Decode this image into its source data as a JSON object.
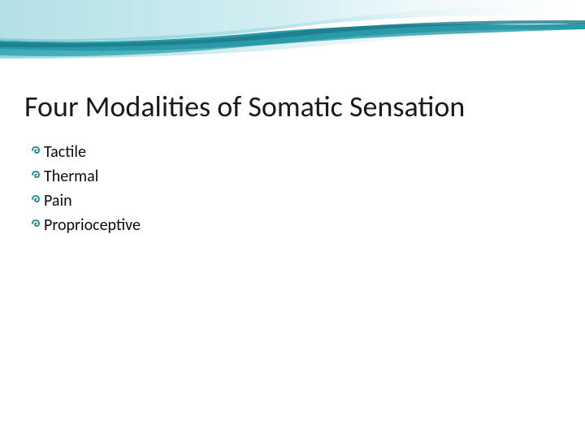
{
  "slide": {
    "title": "Four Modalities of Somatic Sensation",
    "bullets": [
      "Tactile",
      "Thermal",
      "Pain",
      "Proprioceptive"
    ]
  },
  "styling": {
    "title_color": "#1a1a1a",
    "title_fontsize": 36,
    "bullet_fontsize": 20,
    "bullet_color": "#0d0d0d",
    "bullet_icon_color": "#1a8a8a",
    "background_color": "#ffffff",
    "wave_colors": {
      "light_cyan": "#9dd9e0",
      "mid_cyan": "#5bc5d0",
      "teal": "#2a9aa8",
      "dark_teal": "#1a7a88"
    }
  }
}
